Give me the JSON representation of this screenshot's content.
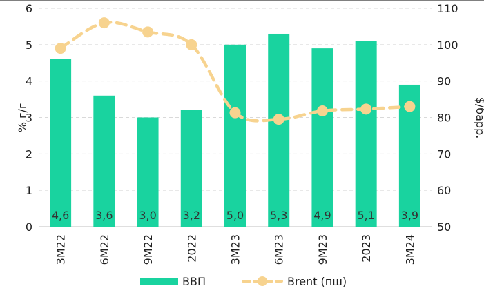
{
  "chart_data": {
    "type": "bar+line",
    "categories": [
      "3М22",
      "6М22",
      "9М22",
      "2022",
      "3М23",
      "6М23",
      "9М23",
      "2023",
      "3М24"
    ],
    "series": [
      {
        "name": "ВВП",
        "type": "bar",
        "axis": "left",
        "color": "#19d39f",
        "values": [
          4.6,
          3.6,
          3.0,
          3.2,
          5.0,
          5.3,
          4.9,
          5.1,
          3.9
        ],
        "data_labels": [
          "4,6",
          "3,6",
          "3,0",
          "3,2",
          "5,0",
          "5,3",
          "4,9",
          "5,1",
          "3,9"
        ]
      },
      {
        "name": "Brent (пш)",
        "type": "line",
        "axis": "right",
        "color": "#f7d38f",
        "style": "dashed-with-markers",
        "values": [
          99,
          106,
          103.5,
          100,
          81.3,
          79.5,
          81.8,
          82.3,
          83
        ]
      }
    ],
    "ylabel": "% г/г",
    "y2label": "$/барр.",
    "ylim": [
      0,
      6
    ],
    "y2lim": [
      50,
      110
    ],
    "yticks": [
      "0",
      "1",
      "2",
      "3",
      "4",
      "5",
      "6"
    ],
    "y2ticks": [
      "50",
      "60",
      "70",
      "80",
      "90",
      "100",
      "110"
    ],
    "grid": "horizontal-dashed",
    "legend_position": "bottom"
  }
}
